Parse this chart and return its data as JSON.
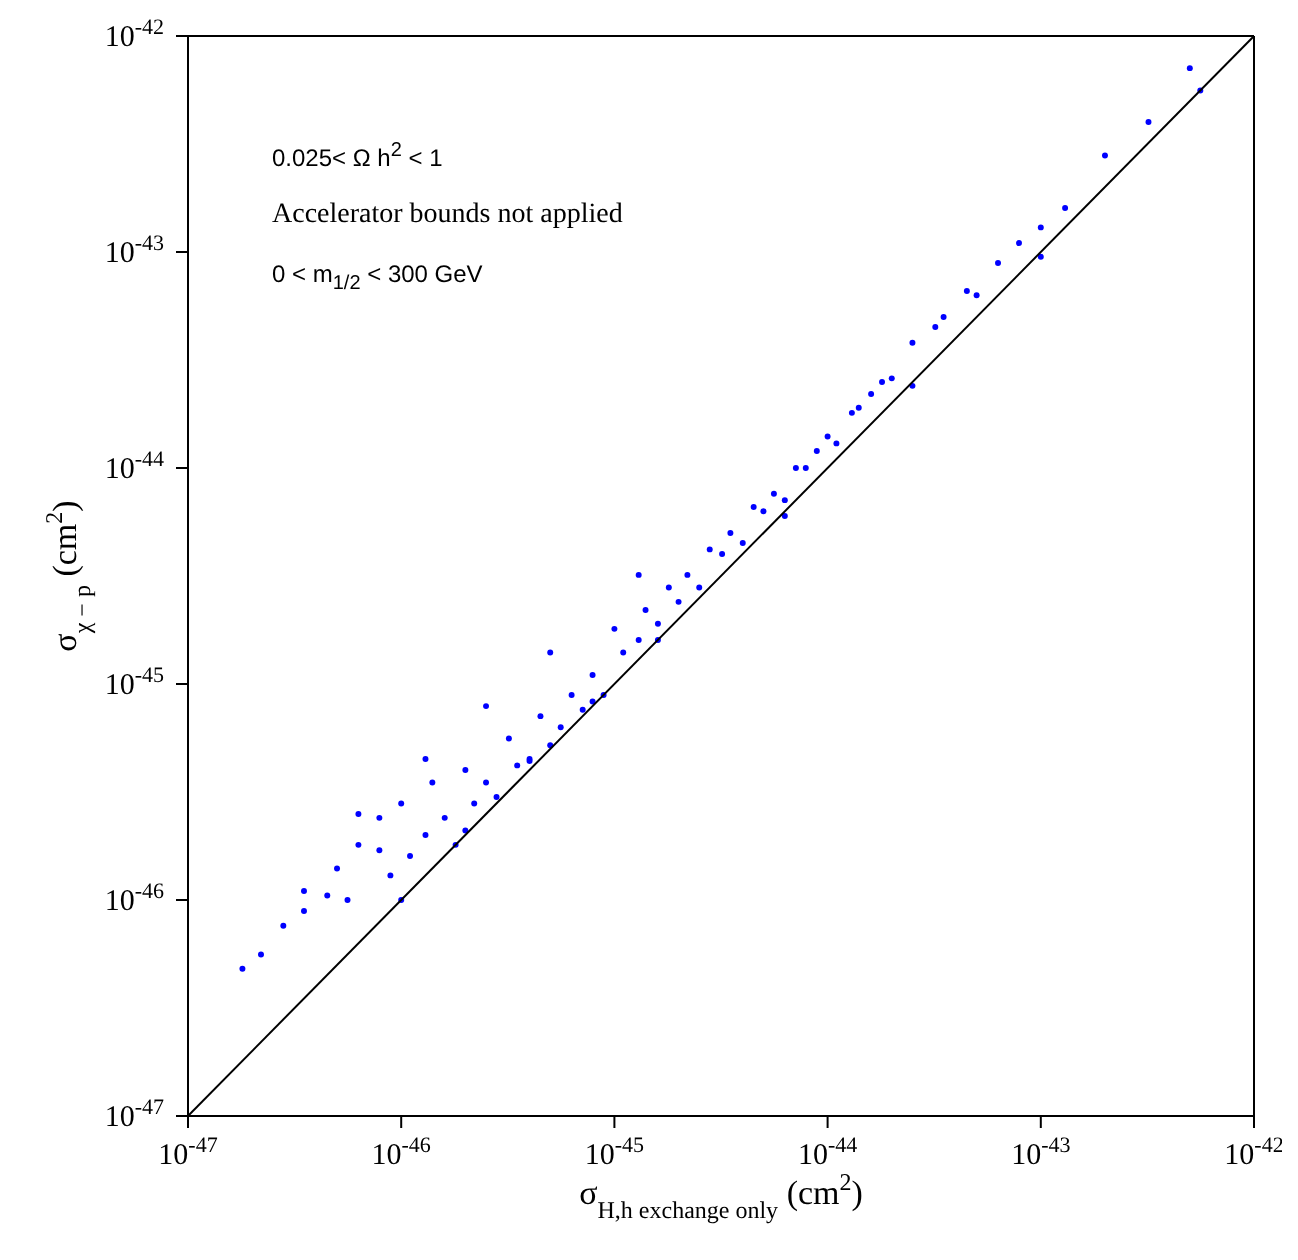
{
  "chart_data": {
    "type": "scatter",
    "log": "xy",
    "marker": "circle",
    "xlabel": "σ$_{H,h exchange only}$ (cm$^{2}$)",
    "ylabel": "σ$_{χ − p}$ (cm$^{2}$)",
    "annotations": [
      "0.025< Ω h$^{2}$ < 1",
      "Accelerator bounds not applied",
      "0 < m$_{1/2}$ < 300 GeV"
    ],
    "xlim": [
      1e-47,
      1e-42
    ],
    "ylim": [
      1e-47,
      1e-42
    ],
    "xticks": [
      {
        "value": 1e-47,
        "label": "10$^{-47}$"
      },
      {
        "value": 1e-46,
        "label": "10$^{-46}$"
      },
      {
        "value": 1e-45,
        "label": "10$^{-45}$"
      },
      {
        "value": 1e-44,
        "label": "10$^{-44}$"
      },
      {
        "value": 1e-43,
        "label": "10$^{-43}$"
      },
      {
        "value": 1e-42,
        "label": "10$^{-42}$"
      }
    ],
    "yticks": [
      {
        "value": 1e-47,
        "label": "10$^{-47}$"
      },
      {
        "value": 1e-46,
        "label": "10$^{-46}$"
      },
      {
        "value": 1e-45,
        "label": "10$^{-45}$"
      },
      {
        "value": 1e-44,
        "label": "10$^{-44}$"
      },
      {
        "value": 1e-43,
        "label": "10$^{-43}$"
      },
      {
        "value": 1e-42,
        "label": "10$^{-42}$"
      }
    ],
    "series": [
      {
        "color": "#0000ff",
        "x": [
          1.8e-47,
          2.2e-47,
          2.8e-47,
          3.5e-47,
          3.5e-47,
          4.5e-47,
          5e-47,
          5.6e-47,
          6.3e-47,
          7.9e-47,
          7.9e-47,
          8.9e-47,
          1e-46,
          1.1e-46,
          1.3e-46,
          1.4e-46,
          1.6e-46,
          1.8e-46,
          2e-46,
          2.2e-46,
          2.5e-46,
          2.8e-46,
          3.2e-46,
          3.5e-46,
          4e-46,
          4.5e-46,
          5e-46,
          5.6e-46,
          6.3e-46,
          7.1e-46,
          7.9e-46,
          8.9e-46,
          1e-45,
          1.1e-45,
          1.3e-45,
          1.4e-45,
          1.6e-45,
          1.8e-45,
          2e-45,
          2.2e-45,
          2.5e-45,
          2.8e-45,
          3.2e-45,
          3.5e-45,
          4e-45,
          4.5e-45,
          5e-45,
          5.6e-45,
          6.3e-45,
          7.1e-45,
          7.9e-45,
          8.9e-45,
          1e-44,
          1.1e-44,
          1.3e-44,
          1.4e-44,
          1.6e-44,
          1.8e-44,
          2e-44,
          2.5e-44,
          3.2e-44,
          3.5e-44,
          4.5e-44,
          5e-44,
          6.3e-44,
          7.9e-44,
          1e-43,
          1.3e-43,
          2e-43,
          3.2e-43,
          5e-43,
          5.6e-43,
          1e-46,
          2e-46,
          4e-46,
          7.9e-46,
          1.6e-45,
          6.3e-45,
          2.5e-44,
          1e-43,
          6.3e-47,
          1.3e-46,
          2.5e-46,
          5e-46,
          1.3e-45
        ],
        "values": [
          4.8e-47,
          5.6e-47,
          7.6e-47,
          8.9e-47,
          1.1e-46,
          1.05e-46,
          1.4e-46,
          1e-46,
          1.8e-46,
          1.7e-46,
          2.4e-46,
          1.3e-46,
          2.8e-46,
          1.6e-46,
          2e-46,
          3.5e-46,
          2.4e-46,
          1.8e-46,
          4e-46,
          2.8e-46,
          3.5e-46,
          3e-46,
          5.6e-46,
          4.2e-46,
          4.4e-46,
          7.1e-46,
          5.2e-46,
          6.3e-46,
          8.9e-46,
          7.6e-46,
          1.1e-45,
          8.9e-46,
          1.8e-45,
          1.4e-45,
          1.6e-45,
          2.2e-45,
          1.9e-45,
          2.8e-45,
          2.4e-45,
          3.2e-45,
          2.8e-45,
          4.2e-45,
          4e-45,
          5e-45,
          4.5e-45,
          6.6e-45,
          6.3e-45,
          7.6e-45,
          7.1e-45,
          1e-44,
          1e-44,
          1.2e-44,
          1.4e-44,
          1.3e-44,
          1.8e-44,
          1.9e-44,
          2.2e-44,
          2.5e-44,
          2.6e-44,
          3.8e-44,
          4.5e-44,
          5e-44,
          6.6e-44,
          6.3e-44,
          8.9e-44,
          1.1e-43,
          1.3e-43,
          1.6e-43,
          2.8e-43,
          4e-43,
          7.1e-43,
          5.6e-43,
          1e-46,
          2.1e-46,
          4.5e-46,
          8.3e-46,
          1.6e-45,
          6e-45,
          2.4e-44,
          9.5e-44,
          2.5e-46,
          4.5e-46,
          7.9e-46,
          1.4e-45,
          3.2e-45
        ]
      },
      {
        "type": "line",
        "marker": "none",
        "color": "#000000",
        "x": [
          1e-47,
          1e-42
        ],
        "values": [
          1e-47,
          1e-42
        ]
      }
    ]
  }
}
